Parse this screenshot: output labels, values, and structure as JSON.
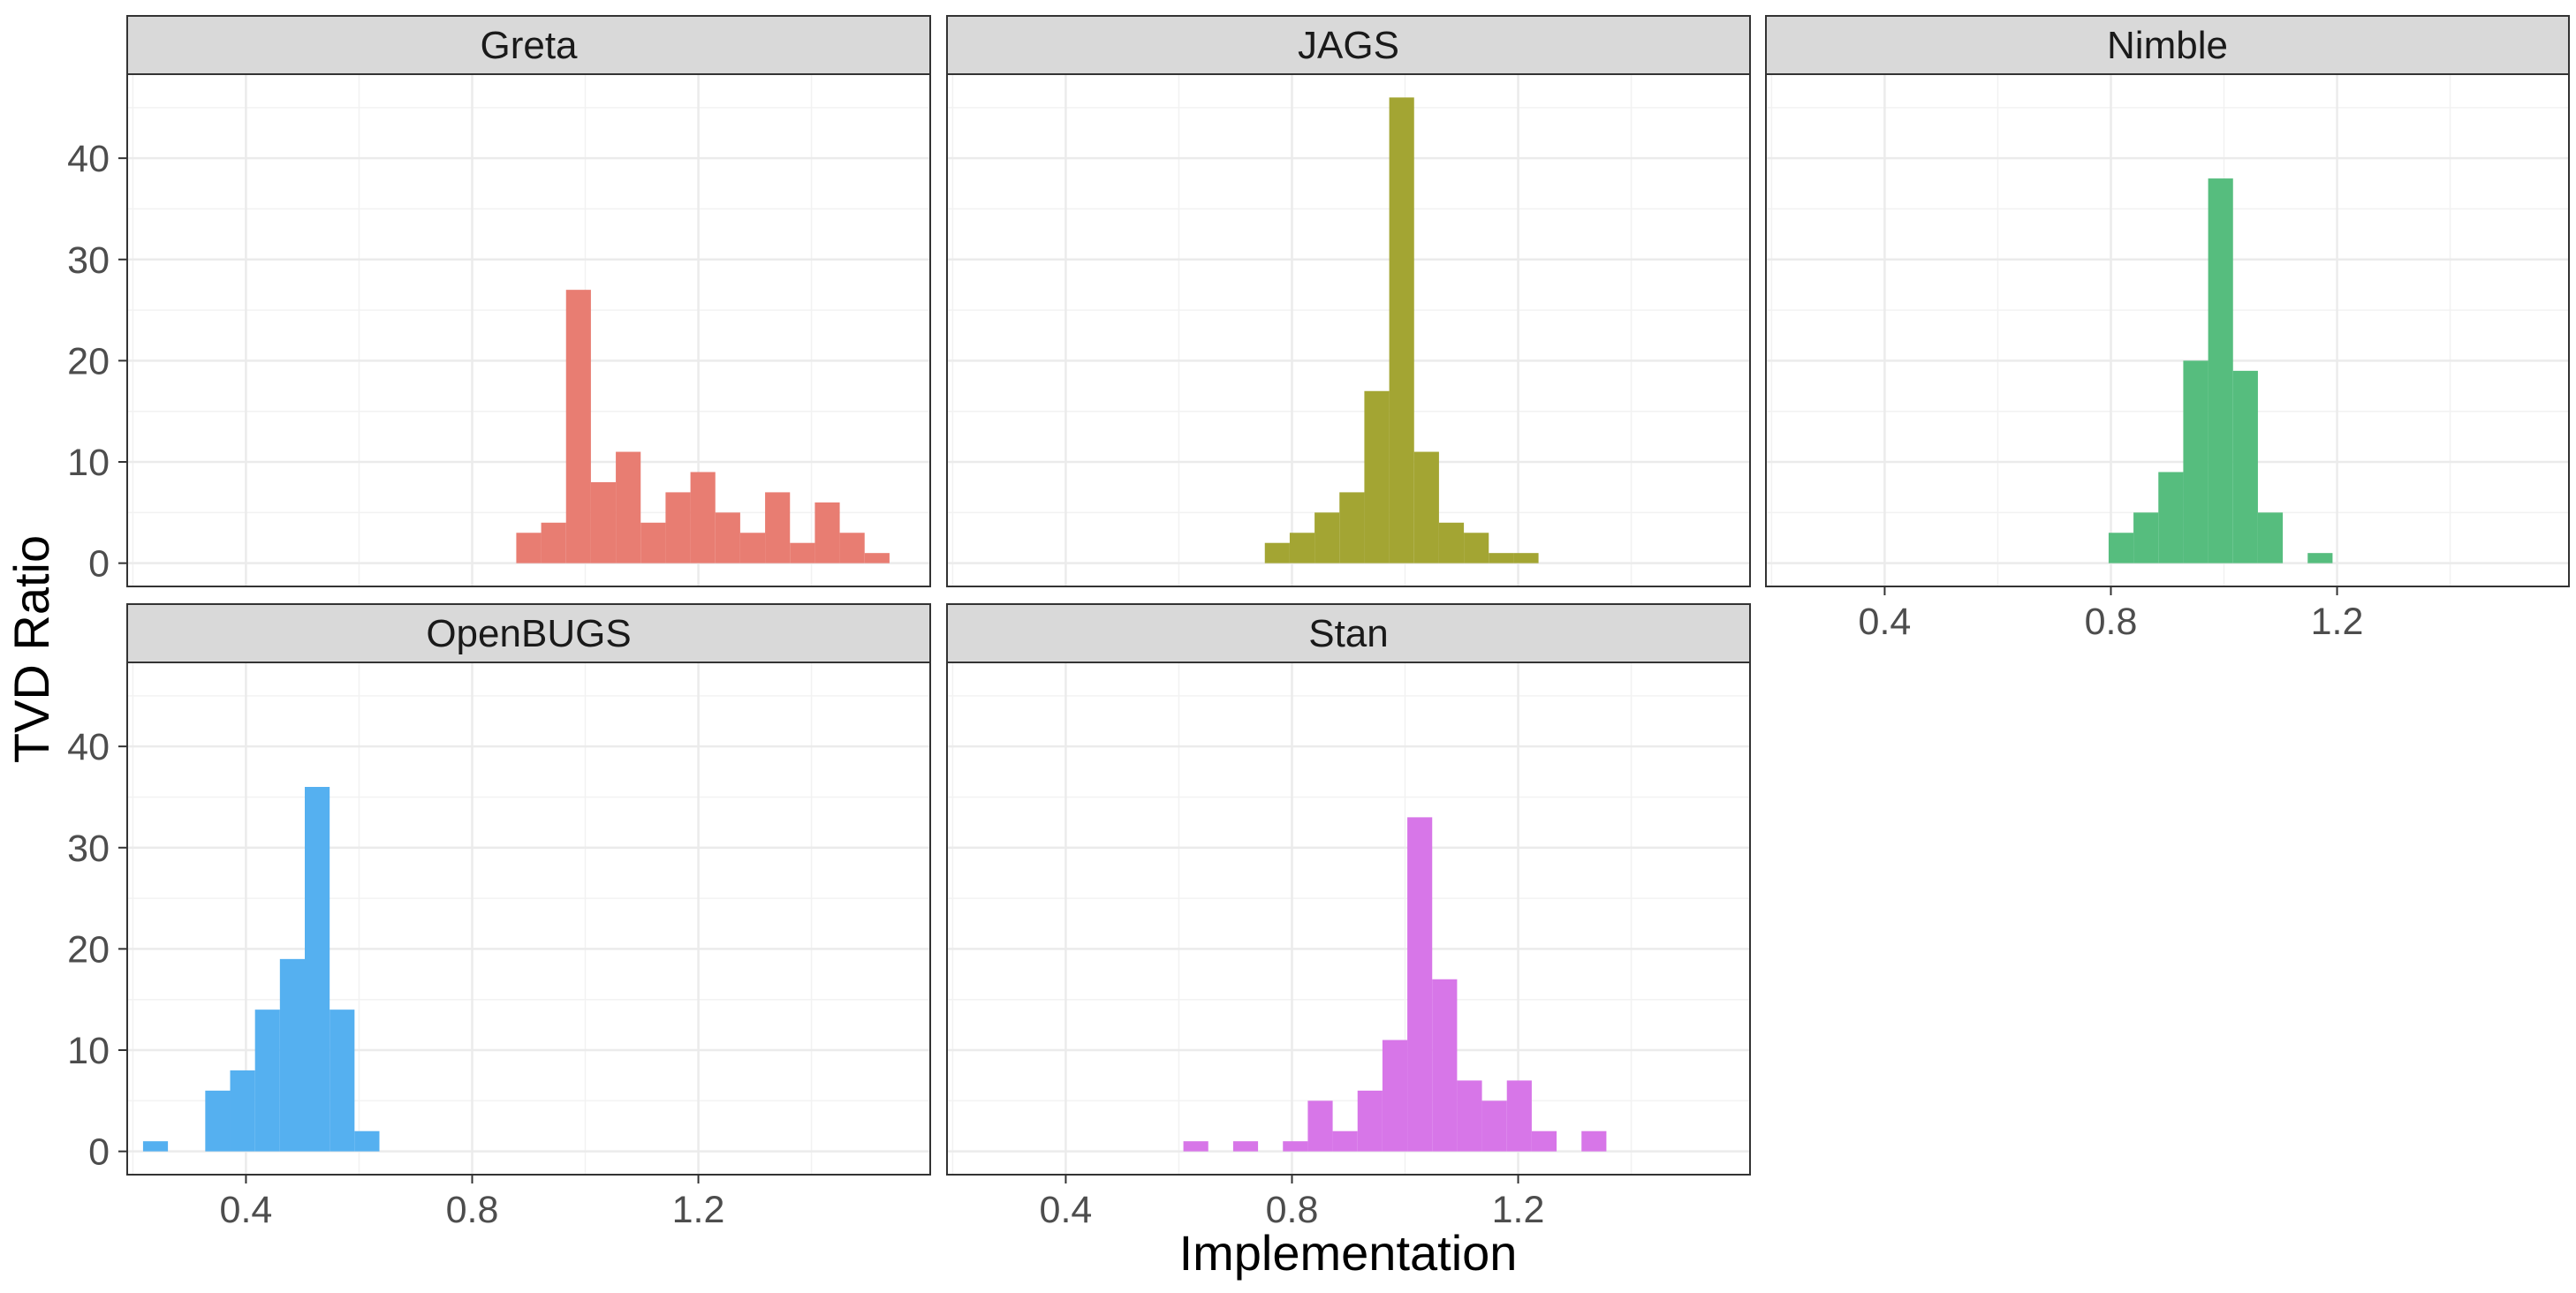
{
  "chart_data": {
    "type": "bar",
    "layout": "facet_wrap",
    "xlabel": "Implementation",
    "ylabel": "TVD Ratio",
    "xlim": [
      0.19,
      1.61
    ],
    "ylim": [
      -2.3,
      48.3
    ],
    "x_ticks": [
      0.4,
      0.8,
      1.2
    ],
    "x_tick_labels": [
      "0.4",
      "0.8",
      "1.2"
    ],
    "y_ticks": [
      0,
      10,
      20,
      30,
      40
    ],
    "y_tick_labels": [
      "0",
      "10",
      "20",
      "30",
      "40"
    ],
    "bin_width": 0.044,
    "grid": true,
    "legend": "none",
    "panels": [
      {
        "name": "Greta",
        "color": "#E87D72",
        "bins": [
          {
            "x": 0.9,
            "count": 3
          },
          {
            "x": 0.944,
            "count": 4
          },
          {
            "x": 0.988,
            "count": 27
          },
          {
            "x": 1.032,
            "count": 8
          },
          {
            "x": 1.076,
            "count": 11
          },
          {
            "x": 1.12,
            "count": 4
          },
          {
            "x": 1.164,
            "count": 7
          },
          {
            "x": 1.208,
            "count": 9
          },
          {
            "x": 1.252,
            "count": 5
          },
          {
            "x": 1.296,
            "count": 3
          },
          {
            "x": 1.34,
            "count": 7
          },
          {
            "x": 1.384,
            "count": 2
          },
          {
            "x": 1.428,
            "count": 6
          },
          {
            "x": 1.472,
            "count": 3
          },
          {
            "x": 1.516,
            "count": 1
          }
        ]
      },
      {
        "name": "JAGS",
        "color": "#A3A533",
        "bins": [
          {
            "x": 0.774,
            "count": 2
          },
          {
            "x": 0.818,
            "count": 3
          },
          {
            "x": 0.862,
            "count": 5
          },
          {
            "x": 0.906,
            "count": 7
          },
          {
            "x": 0.95,
            "count": 17
          },
          {
            "x": 0.994,
            "count": 46
          },
          {
            "x": 1.038,
            "count": 11
          },
          {
            "x": 1.082,
            "count": 4
          },
          {
            "x": 1.126,
            "count": 3
          },
          {
            "x": 1.17,
            "count": 1
          },
          {
            "x": 1.214,
            "count": 1
          }
        ]
      },
      {
        "name": "Nimble",
        "color": "#56BD7E",
        "bins": [
          {
            "x": 0.818,
            "count": 3
          },
          {
            "x": 0.862,
            "count": 5
          },
          {
            "x": 0.906,
            "count": 9
          },
          {
            "x": 0.95,
            "count": 20
          },
          {
            "x": 0.994,
            "count": 38
          },
          {
            "x": 1.038,
            "count": 19
          },
          {
            "x": 1.082,
            "count": 5
          },
          {
            "x": 1.17,
            "count": 1
          }
        ]
      },
      {
        "name": "OpenBUGS",
        "color": "#55B0F0",
        "bins": [
          {
            "x": 0.24,
            "count": 1
          },
          {
            "x": 0.35,
            "count": 6
          },
          {
            "x": 0.394,
            "count": 8
          },
          {
            "x": 0.438,
            "count": 14
          },
          {
            "x": 0.482,
            "count": 19
          },
          {
            "x": 0.526,
            "count": 36
          },
          {
            "x": 0.57,
            "count": 14
          },
          {
            "x": 0.614,
            "count": 2
          }
        ]
      },
      {
        "name": "Stan",
        "color": "#D776E8",
        "bins": [
          {
            "x": 0.63,
            "count": 1
          },
          {
            "x": 0.718,
            "count": 1
          },
          {
            "x": 0.806,
            "count": 1
          },
          {
            "x": 0.85,
            "count": 5
          },
          {
            "x": 0.894,
            "count": 2
          },
          {
            "x": 0.938,
            "count": 6
          },
          {
            "x": 0.982,
            "count": 11
          },
          {
            "x": 1.026,
            "count": 33
          },
          {
            "x": 1.07,
            "count": 17
          },
          {
            "x": 1.114,
            "count": 7
          },
          {
            "x": 1.158,
            "count": 5
          },
          {
            "x": 1.202,
            "count": 7
          },
          {
            "x": 1.246,
            "count": 2
          },
          {
            "x": 1.334,
            "count": 2
          }
        ]
      }
    ]
  }
}
